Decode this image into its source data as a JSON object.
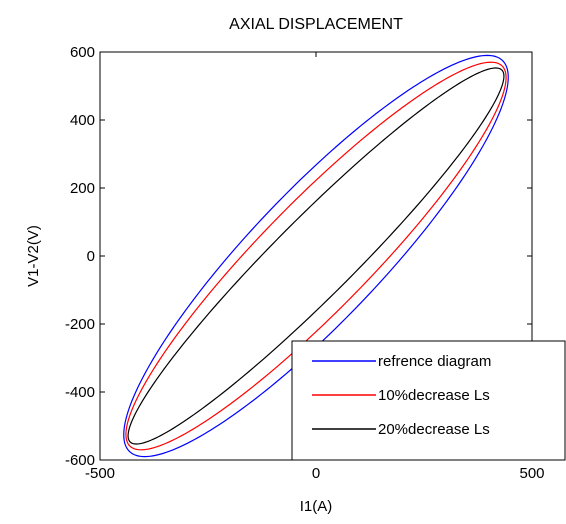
{
  "chart_data": {
    "type": "line",
    "title": "AXIAL DISPLACEMENT",
    "xlabel": "I1(A)",
    "ylabel": "V1-V2(V)",
    "xlim": [
      -500,
      500
    ],
    "ylim": [
      -600,
      600
    ],
    "xticks": [
      "-500",
      "0",
      "500"
    ],
    "yticks": [
      "600",
      "400",
      "200",
      "0",
      "-200",
      "-400",
      "-600"
    ],
    "grid": false,
    "legend_position": "bottom-right",
    "series": [
      {
        "name": "refrence diagram",
        "color": "#0000ff",
        "shape": "hysteresis-loop",
        "amplitude_x": 445,
        "amplitude_y": 590,
        "phase_deg": 27
      },
      {
        "name": "10%decrease Ls",
        "color": "#ff0000",
        "shape": "hysteresis-loop",
        "amplitude_x": 440,
        "amplitude_y": 570,
        "phase_deg": 23
      },
      {
        "name": "20%decrease Ls",
        "color": "#000000",
        "shape": "hysteresis-loop",
        "amplitude_x": 435,
        "amplitude_y": 553,
        "phase_deg": 17
      }
    ]
  }
}
